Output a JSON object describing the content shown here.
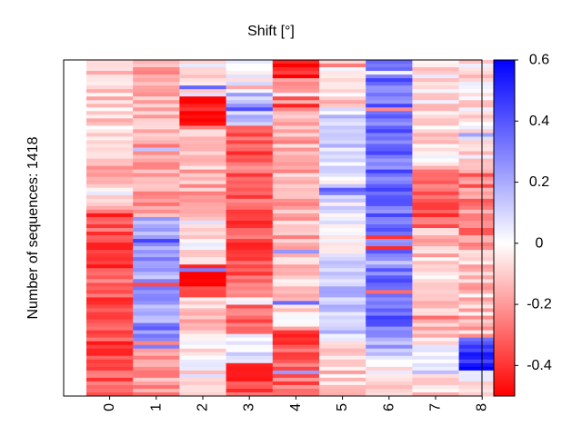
{
  "chart_data": {
    "type": "heatmap",
    "title": "Shift [°]",
    "ylabel": "Number of sequences: 1418",
    "xlabel": "",
    "columns": [
      "0",
      "1",
      "2",
      "3",
      "4",
      "5",
      "6",
      "7",
      "8"
    ],
    "row_count": 1418,
    "colorbar": {
      "min": -0.5,
      "max": 0.6,
      "ticks": [
        "0.6",
        "0.4",
        "0.2",
        "0",
        "-0.2",
        "-0.4"
      ],
      "tick_values": [
        0.6,
        0.4,
        0.2,
        0,
        -0.2,
        -0.4
      ],
      "low_color": "#ff0000",
      "zero_color": "#ffffff",
      "high_color": "#0000ff"
    },
    "grid": false,
    "approx_column_means": [
      -0.15,
      -0.08,
      -0.12,
      -0.3,
      -0.28,
      0.0,
      0.32,
      -0.08,
      0.0
    ]
  }
}
